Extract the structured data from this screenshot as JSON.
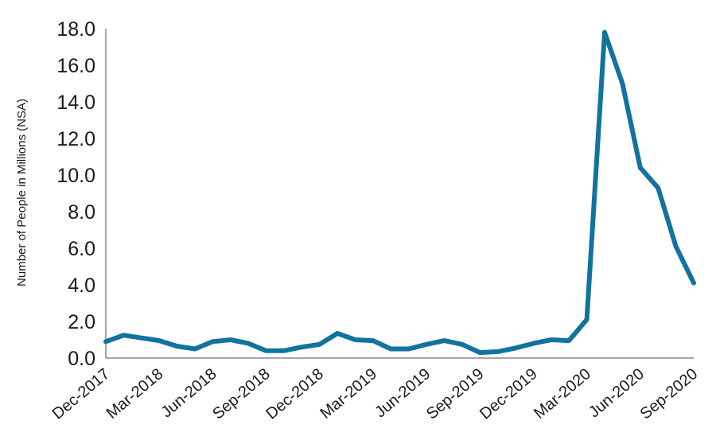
{
  "chart_data": {
    "type": "line",
    "title": "",
    "xlabel": "",
    "ylabel": "Number of People in Millions (NSA)",
    "ylim": [
      0,
      18
    ],
    "yticks": [
      "0.0",
      "2.0",
      "4.0",
      "6.0",
      "8.0",
      "10.0",
      "12.0",
      "14.0",
      "16.0",
      "18.0"
    ],
    "xtick_labels": [
      "Dec-2017",
      "Mar-2018",
      "Jun-2018",
      "Sep-2018",
      "Dec-2018",
      "Mar-2019",
      "Jun-2019",
      "Sep-2019",
      "Dec-2019",
      "Mar-2020",
      "Jun-2020",
      "Sep-2020"
    ],
    "x": [
      "Dec-2017",
      "Jan-2018",
      "Feb-2018",
      "Mar-2018",
      "Apr-2018",
      "May-2018",
      "Jun-2018",
      "Jul-2018",
      "Aug-2018",
      "Sep-2018",
      "Oct-2018",
      "Nov-2018",
      "Dec-2018",
      "Jan-2019",
      "Feb-2019",
      "Mar-2019",
      "Apr-2019",
      "May-2019",
      "Jun-2019",
      "Jul-2019",
      "Aug-2019",
      "Sep-2019",
      "Oct-2019",
      "Nov-2019",
      "Dec-2019",
      "Jan-2020",
      "Feb-2020",
      "Mar-2020",
      "Apr-2020",
      "May-2020",
      "Jun-2020",
      "Jul-2020",
      "Aug-2020",
      "Sep-2020"
    ],
    "series": [
      {
        "values": [
          0.9,
          1.25,
          1.1,
          0.95,
          0.65,
          0.5,
          0.9,
          1.0,
          0.8,
          0.4,
          0.4,
          0.6,
          0.75,
          1.35,
          1.0,
          0.95,
          0.5,
          0.5,
          0.75,
          0.95,
          0.75,
          0.3,
          0.35,
          0.55,
          0.8,
          1.0,
          0.95,
          2.1,
          17.8,
          15.0,
          10.4,
          9.3,
          6.1,
          4.1
        ],
        "color": "#1273a0"
      }
    ],
    "grid": false,
    "legend": "none"
  }
}
